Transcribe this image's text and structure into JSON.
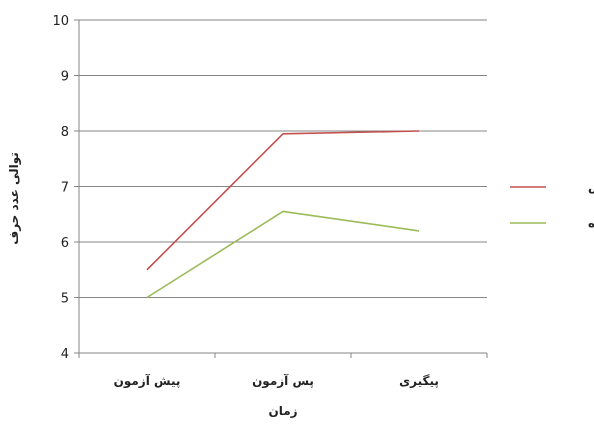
{
  "chart_data": {
    "type": "line",
    "categories": [
      "پیش آزمون",
      "پس آزمون",
      "پیگیری"
    ],
    "series": [
      {
        "name": "آزمایش",
        "values": [
          5.5,
          7.95,
          8.0
        ],
        "color": "#c0504d"
      },
      {
        "name": "گواه",
        "values": [
          5.0,
          6.55,
          6.2
        ],
        "color": "#9bbb59"
      }
    ],
    "xlabel": "زمان",
    "ylabel": "توالی عدد حرف",
    "ylim": [
      4,
      10
    ],
    "yticks": [
      4,
      5,
      6,
      7,
      8,
      9,
      10
    ],
    "grid": true,
    "legend": "right",
    "axis_color": "#868686",
    "grid_color": "#868686"
  }
}
